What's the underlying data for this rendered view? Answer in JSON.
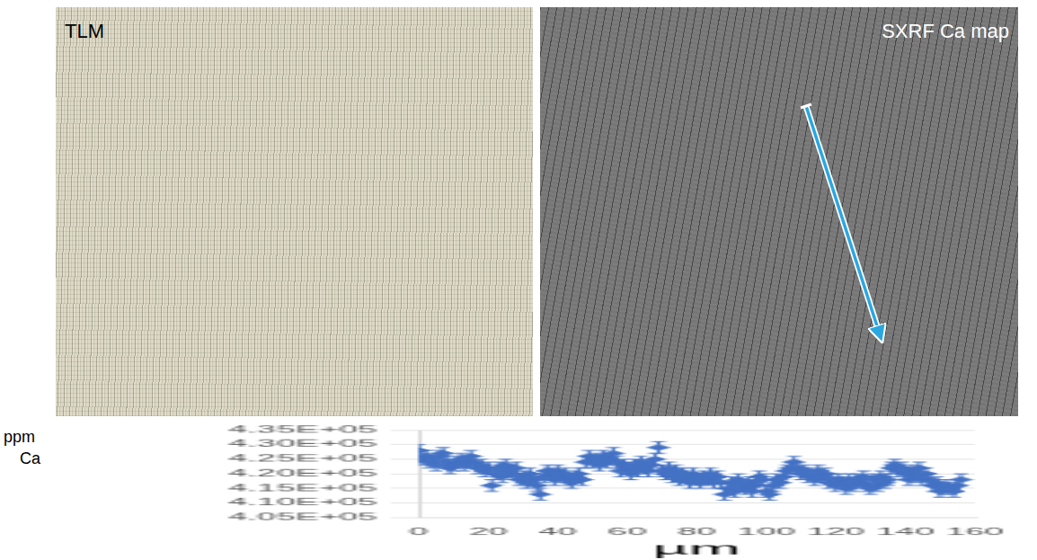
{
  "panels": [
    {
      "label": "TLM"
    },
    {
      "label": "SXRF Ca map"
    }
  ],
  "chart_data": {
    "type": "scatter",
    "x_label": "µm",
    "y_label": "ppm Ca",
    "color": "#4472c4",
    "marker": "diamond",
    "grid": true,
    "xlim": [
      0,
      160
    ],
    "xticks": [
      0,
      20,
      40,
      60,
      80,
      100,
      120,
      140,
      160
    ],
    "ylim": [
      405000,
      435000
    ],
    "yticks": [
      {
        "value": 405000,
        "label": "4.05E+05"
      },
      {
        "value": 410000,
        "label": "4.10E+05"
      },
      {
        "value": 415000,
        "label": "4.15E+05"
      },
      {
        "value": 420000,
        "label": "4.20E+05"
      },
      {
        "value": 425000,
        "label": "4.25E+05"
      },
      {
        "value": 430000,
        "label": "4.30E+05"
      },
      {
        "value": 435000,
        "label": "4.35E+05"
      }
    ],
    "x": [
      0,
      1,
      2,
      3,
      4,
      5,
      6,
      7,
      8,
      9,
      10,
      11,
      12,
      13,
      14,
      15,
      16,
      17,
      18,
      19,
      20,
      21,
      22,
      23,
      24,
      25,
      26,
      27,
      28,
      29,
      30,
      31,
      32,
      33,
      34,
      35,
      36,
      37,
      38,
      39,
      40,
      41,
      42,
      43,
      44,
      45,
      46,
      47,
      48,
      49,
      50,
      51,
      52,
      53,
      54,
      55,
      56,
      57,
      58,
      59,
      60,
      61,
      62,
      63,
      64,
      65,
      66,
      67,
      68,
      69,
      70,
      71,
      72,
      73,
      74,
      75,
      76,
      77,
      78,
      79,
      80,
      81,
      82,
      83,
      84,
      85,
      86,
      87,
      88,
      89,
      90,
      91,
      92,
      93,
      94,
      95,
      96,
      97,
      98,
      99,
      100,
      101,
      102,
      103,
      104,
      105,
      106,
      107,
      108,
      109,
      110,
      111,
      112,
      113,
      114,
      115,
      116,
      117,
      118,
      119,
      120,
      121,
      122,
      123,
      124,
      125,
      126,
      127,
      128,
      129,
      130,
      131,
      132,
      133,
      134,
      135,
      136,
      137,
      138,
      139,
      140,
      141,
      142,
      143,
      144,
      145,
      146,
      147,
      148,
      149,
      150,
      151,
      152,
      153,
      154,
      155,
      156
    ],
    "values": [
      428000,
      425000,
      426000,
      424000,
      425000,
      423000,
      426000,
      427000,
      424000,
      422000,
      423000,
      424000,
      425000,
      423000,
      424000,
      426000,
      424000,
      422000,
      423000,
      421000,
      422000,
      416000,
      420000,
      422000,
      419000,
      423000,
      421000,
      420000,
      422000,
      418000,
      419000,
      417000,
      420000,
      418000,
      416000,
      413000,
      419000,
      421000,
      420000,
      418000,
      421000,
      419000,
      420000,
      418000,
      417000,
      419000,
      420000,
      418000,
      424000,
      426000,
      424000,
      425000,
      423000,
      426000,
      424000,
      425000,
      427000,
      424000,
      421000,
      423000,
      422000,
      420000,
      423000,
      421000,
      424000,
      422000,
      421000,
      423000,
      425000,
      429000,
      421000,
      420000,
      422000,
      419000,
      421000,
      418000,
      420000,
      419000,
      417000,
      420000,
      418000,
      417000,
      419000,
      418000,
      420000,
      417000,
      419000,
      417000,
      413000,
      415000,
      417000,
      414000,
      418000,
      416000,
      415000,
      417000,
      414000,
      416000,
      419000,
      418000,
      414000,
      413000,
      416000,
      418000,
      417000,
      419000,
      421000,
      422000,
      424000,
      422000,
      420000,
      421000,
      419000,
      420000,
      418000,
      421000,
      419000,
      420000,
      417000,
      418000,
      416000,
      418000,
      417000,
      415000,
      418000,
      416000,
      418000,
      417000,
      419000,
      416000,
      415000,
      418000,
      416000,
      419000,
      417000,
      418000,
      422000,
      423000,
      421000,
      422000,
      420000,
      418000,
      421000,
      419000,
      422000,
      418000,
      420000,
      418000,
      416000,
      417000,
      414000,
      415000,
      416000,
      415000,
      414000,
      416000,
      418000
    ],
    "errors": [
      2000,
      2000,
      2000,
      2000,
      2000,
      2000,
      2000,
      2000,
      2000,
      2000,
      2000,
      2000,
      2000,
      2000,
      2000,
      2000,
      2000,
      2000,
      2000,
      2000,
      2000,
      2000,
      2000,
      2000,
      2000,
      2000,
      2000,
      2000,
      2000,
      2000,
      2000,
      2000,
      2000,
      2000,
      2000,
      2000,
      2000,
      2000,
      2000,
      2000,
      2000,
      2000,
      2000,
      2000,
      2000,
      2000,
      2000,
      2000,
      2000,
      2000,
      2000,
      2000,
      2000,
      2000,
      2000,
      2000,
      2000,
      2000,
      2000,
      2000,
      2000,
      2000,
      2000,
      2000,
      2000,
      2000,
      2000,
      2000,
      2000,
      2000,
      2000,
      2000,
      2000,
      2000,
      2000,
      2000,
      2000,
      2000,
      2000,
      2000,
      2000,
      2000,
      2000,
      2000,
      2000,
      2000,
      2000,
      2000,
      2000,
      2000,
      2000,
      2000,
      2000,
      2000,
      2000,
      2000,
      2000,
      2000,
      2000,
      2000,
      2000,
      2000,
      2000,
      2000,
      2000,
      2000,
      2000,
      2000,
      2000,
      2000,
      2000,
      2000,
      2000,
      2000,
      2000,
      2000,
      2000,
      2000,
      2000,
      2000,
      2000,
      2000,
      2000,
      2000,
      2000,
      2000,
      2000,
      2000,
      2000,
      2000,
      2000,
      2000,
      2000,
      2000,
      2000,
      2000,
      2000,
      2000,
      2000,
      2000,
      2000,
      2000,
      2000,
      2000,
      2000,
      2000,
      2000,
      2000,
      2000,
      2000,
      2000,
      2000,
      2000,
      2000,
      2000,
      2000,
      2000
    ]
  }
}
